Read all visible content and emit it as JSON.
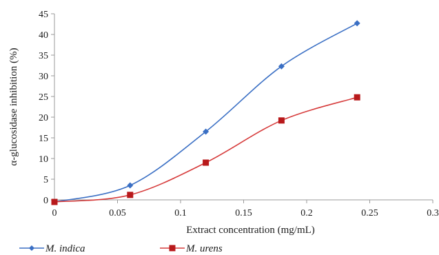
{
  "chart_data": {
    "type": "line",
    "xlabel": "Extract concentration (mg/mL)",
    "ylabel": "α-glucosidase inhibition (%)",
    "xlim": [
      0,
      0.3
    ],
    "ylim": [
      0,
      45
    ],
    "x_ticks": [
      "0",
      "0.05",
      "0.1",
      "0.15",
      "0.2",
      "0.25",
      "0.3"
    ],
    "y_ticks": [
      "0",
      "5",
      "10",
      "15",
      "20",
      "25",
      "30",
      "35",
      "40",
      "45"
    ],
    "grid": false,
    "legend_position": "bottom",
    "x": [
      0,
      0.06,
      0.12,
      0.18,
      0.24
    ],
    "series": [
      {
        "name": "M. indica",
        "values": [
          -0.5,
          3.5,
          16.5,
          32.3,
          42.7
        ],
        "color": "#3a6fc4",
        "marker": "diamond"
      },
      {
        "name": "M. urens",
        "values": [
          -0.5,
          1.2,
          9.0,
          19.2,
          24.8
        ],
        "color": "#d63a3a",
        "marker": "square",
        "marker_fill": "#b8191b"
      }
    ]
  }
}
